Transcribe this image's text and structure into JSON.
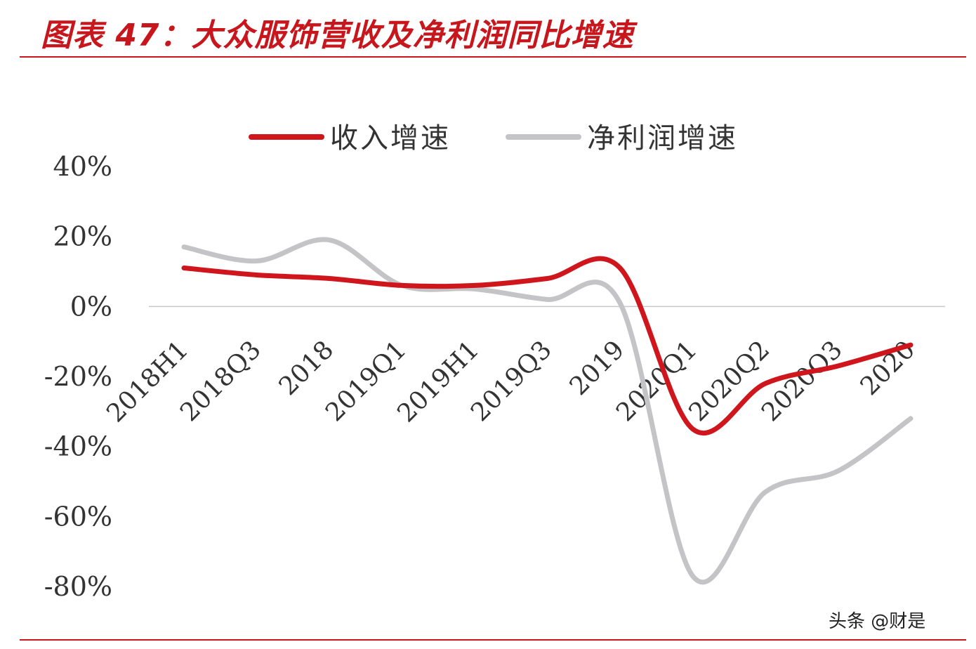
{
  "header": {
    "title": "图表 47：大众服饰营收及净利润同比增速"
  },
  "watermark": "头条 @财是",
  "chart_data": {
    "type": "line",
    "categories": [
      "2018H1",
      "2018Q3",
      "2018",
      "2019Q1",
      "2019H1",
      "2019Q3",
      "2019",
      "2020Q1",
      "2020Q2",
      "2020Q3",
      "2020"
    ],
    "series": [
      {
        "name": "收入增速",
        "color": "#d0161d",
        "values": [
          11,
          9,
          8,
          6,
          6,
          8,
          11,
          -35,
          -22,
          -17,
          -11
        ]
      },
      {
        "name": "净利润增速",
        "color": "#c4c4c6",
        "values": [
          17,
          13,
          19,
          6,
          5,
          2,
          1,
          -77,
          -53,
          -47,
          -32
        ]
      }
    ],
    "y_ticks": [
      "40%",
      "20%",
      "0%",
      "-20%",
      "-40%",
      "-60%",
      "-80%"
    ],
    "ylim": [
      -80,
      40
    ],
    "legend_position": "top",
    "grid": false,
    "colors": {
      "accent": "#c8161d",
      "zero_line": "#c8c8c8",
      "text": "#333333"
    }
  }
}
